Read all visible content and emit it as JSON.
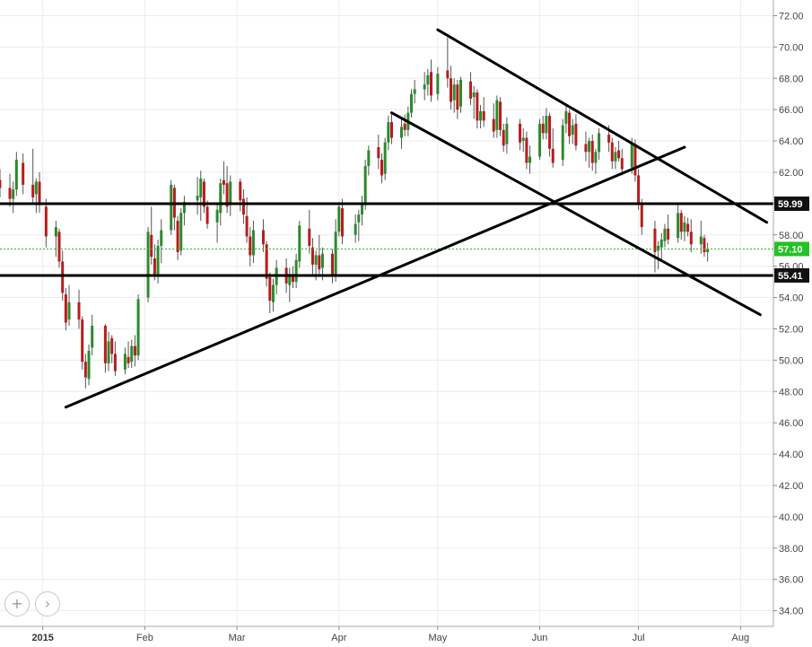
{
  "chart_data": {
    "type": "candlestick",
    "title": "",
    "xlabel": "",
    "ylabel": "",
    "ylim": [
      33,
      73
    ],
    "y_axis_position": "right",
    "y_ticks": [
      "34.00",
      "36.00",
      "38.00",
      "40.00",
      "42.00",
      "44.00",
      "46.00",
      "48.00",
      "50.00",
      "52.00",
      "54.00",
      "56.00",
      "58.00",
      "60.00",
      "62.00",
      "64.00",
      "66.00",
      "68.00",
      "70.00",
      "72.00"
    ],
    "x_ticks": [
      {
        "date": "2015-01-01",
        "label": "2015",
        "bold": true
      },
      {
        "date": "2015-02-01",
        "label": "Feb"
      },
      {
        "date": "2015-03-01",
        "label": "Mar"
      },
      {
        "date": "2015-04-01",
        "label": "Apr"
      },
      {
        "date": "2015-05-01",
        "label": "May"
      },
      {
        "date": "2015-06-01",
        "label": "Jun"
      },
      {
        "date": "2015-07-01",
        "label": "Jul"
      },
      {
        "date": "2015-08-01",
        "label": "Aug"
      }
    ],
    "x_range": [
      "2014-12-19",
      "2015-08-11"
    ],
    "grid": true,
    "colors": {
      "up": "#2d8a2d",
      "down": "#b71c1c",
      "wick": "#555555",
      "grid": "#ececec",
      "line": "#000000",
      "price_line": "#22bb22",
      "badge_green": "#22c322",
      "badge_dark": "#111111"
    },
    "key_levels": [
      {
        "value": 59.99,
        "label": "59.99"
      },
      {
        "value": 55.41,
        "label": "55.41"
      }
    ],
    "last_price": {
      "value": 57.1,
      "label": "57.10"
    },
    "trendlines": [
      {
        "from": [
          "2015-01-08",
          47.0
        ],
        "to": [
          "2015-07-15",
          63.6
        ]
      },
      {
        "from": [
          "2015-05-01",
          71.1
        ],
        "to": [
          "2015-08-09",
          58.8
        ]
      },
      {
        "from": [
          "2015-04-17",
          65.8
        ],
        "to": [
          "2015-08-07",
          52.9
        ]
      }
    ],
    "candles": [
      [
        "2014-12-19",
        61.5,
        62.2,
        60.4,
        61.0
      ],
      [
        "2014-12-22",
        61.0,
        61.9,
        59.8,
        60.3
      ],
      [
        "2014-12-23",
        60.3,
        61.4,
        59.4,
        60.9
      ],
      [
        "2014-12-24",
        60.9,
        63.3,
        60.5,
        62.8
      ],
      [
        "2014-12-26",
        62.6,
        63.2,
        60.6,
        61.2
      ],
      [
        "2014-12-29",
        61.2,
        63.5,
        60.0,
        60.4
      ],
      [
        "2014-12-30",
        60.6,
        61.6,
        59.4,
        61.4
      ],
      [
        "2014-12-31",
        61.4,
        62.0,
        59.4,
        59.9
      ],
      [
        "2015-01-02",
        59.8,
        60.3,
        57.2,
        57.9
      ],
      [
        "2015-01-05",
        57.9,
        58.9,
        56.6,
        58.5
      ],
      [
        "2015-01-06",
        58.2,
        58.4,
        55.9,
        56.3
      ],
      [
        "2015-01-07",
        56.3,
        57.0,
        53.8,
        54.3
      ],
      [
        "2015-01-08",
        54.2,
        54.6,
        51.9,
        52.4
      ],
      [
        "2015-01-09",
        52.6,
        54.8,
        52.2,
        53.7
      ],
      [
        "2015-01-12",
        53.7,
        54.5,
        52.0,
        52.6
      ],
      [
        "2015-01-13",
        52.6,
        52.8,
        49.4,
        49.9
      ],
      [
        "2015-01-14",
        49.9,
        50.4,
        48.2,
        48.9
      ],
      [
        "2015-01-15",
        48.8,
        51.0,
        48.4,
        50.6
      ],
      [
        "2015-01-16",
        50.8,
        52.9,
        50.3,
        52.2
      ],
      [
        "2015-01-20",
        52.2,
        52.3,
        49.2,
        49.8
      ],
      [
        "2015-01-21",
        49.8,
        51.8,
        49.3,
        51.2
      ],
      [
        "2015-01-22",
        51.4,
        51.6,
        49.8,
        50.4
      ],
      [
        "2015-01-23",
        50.4,
        51.2,
        49.0,
        49.3
      ],
      [
        "2015-01-26",
        49.4,
        50.8,
        49.1,
        50.4
      ],
      [
        "2015-01-27",
        50.2,
        51.2,
        49.5,
        49.8
      ],
      [
        "2015-01-28",
        49.9,
        51.3,
        49.5,
        50.9
      ],
      [
        "2015-01-29",
        50.9,
        51.6,
        49.6,
        50.3
      ],
      [
        "2015-01-30",
        50.3,
        54.2,
        50.0,
        53.9
      ],
      [
        "2015-02-02",
        54.0,
        58.5,
        53.7,
        58.2
      ],
      [
        "2015-02-03",
        58.0,
        59.8,
        56.1,
        56.6
      ],
      [
        "2015-02-04",
        56.5,
        57.4,
        55.1,
        55.5
      ],
      [
        "2015-02-05",
        55.5,
        57.7,
        54.9,
        57.3
      ],
      [
        "2015-02-06",
        57.3,
        59.0,
        56.2,
        58.3
      ],
      [
        "2015-02-09",
        58.3,
        61.5,
        58.0,
        61.2
      ],
      [
        "2015-02-10",
        61.0,
        61.2,
        58.3,
        59.1
      ],
      [
        "2015-02-11",
        58.9,
        59.2,
        56.4,
        56.9
      ],
      [
        "2015-02-12",
        57.0,
        59.7,
        56.7,
        59.4
      ],
      [
        "2015-02-13",
        59.4,
        60.5,
        58.6,
        60.1
      ],
      [
        "2015-02-17",
        60.2,
        61.7,
        59.3,
        60.5
      ],
      [
        "2015-02-18",
        60.4,
        62.1,
        58.9,
        61.6
      ],
      [
        "2015-02-19",
        61.4,
        61.6,
        59.4,
        59.8
      ],
      [
        "2015-02-20",
        59.8,
        60.2,
        58.4,
        58.7
      ],
      [
        "2015-02-23",
        58.8,
        59.9,
        57.5,
        59.6
      ],
      [
        "2015-02-24",
        59.4,
        61.6,
        58.6,
        61.3
      ],
      [
        "2015-02-25",
        61.5,
        62.7,
        60.6,
        61.2
      ],
      [
        "2015-02-26",
        61.3,
        62.4,
        59.4,
        59.8
      ],
      [
        "2015-02-27",
        59.9,
        61.8,
        59.2,
        61.4
      ],
      [
        "2015-03-02",
        61.4,
        61.6,
        59.5,
        60.2
      ],
      [
        "2015-03-03",
        60.3,
        60.9,
        58.7,
        59.3
      ],
      [
        "2015-03-04",
        59.2,
        60.4,
        57.5,
        57.9
      ],
      [
        "2015-03-05",
        57.9,
        58.5,
        56.0,
        56.7
      ],
      [
        "2015-03-06",
        56.7,
        58.9,
        56.2,
        58.3
      ],
      [
        "2015-03-09",
        58.3,
        59.0,
        56.9,
        57.4
      ],
      [
        "2015-03-10",
        57.4,
        57.6,
        54.7,
        55.2
      ],
      [
        "2015-03-11",
        55.3,
        55.6,
        53.0,
        53.8
      ],
      [
        "2015-03-12",
        53.7,
        55.2,
        53.1,
        54.8
      ],
      [
        "2015-03-13",
        54.8,
        56.4,
        54.2,
        55.9
      ],
      [
        "2015-03-16",
        55.9,
        56.5,
        54.3,
        54.9
      ],
      [
        "2015-03-17",
        54.8,
        55.9,
        53.7,
        55.5
      ],
      [
        "2015-03-18",
        55.5,
        56.0,
        54.6,
        55.0
      ],
      [
        "2015-03-19",
        55.0,
        56.8,
        54.6,
        56.4
      ],
      [
        "2015-03-20",
        56.3,
        58.9,
        55.9,
        58.6
      ],
      [
        "2015-03-23",
        58.4,
        59.6,
        56.8,
        57.3
      ],
      [
        "2015-03-24",
        57.2,
        57.8,
        55.5,
        56.1
      ],
      [
        "2015-03-25",
        56.1,
        57.0,
        55.1,
        56.7
      ],
      [
        "2015-03-26",
        56.7,
        58.0,
        55.4,
        55.8
      ],
      [
        "2015-03-27",
        55.9,
        57.2,
        55.1,
        56.8
      ],
      [
        "2015-03-30",
        56.8,
        57.1,
        54.9,
        55.4
      ],
      [
        "2015-03-31",
        55.4,
        59.0,
        55.0,
        58.2
      ],
      [
        "2015-04-01",
        58.2,
        60.1,
        57.9,
        59.8
      ],
      [
        "2015-04-02",
        59.7,
        60.3,
        57.4,
        57.9
      ],
      [
        "2015-04-06",
        58.0,
        59.3,
        57.5,
        58.7
      ],
      [
        "2015-04-07",
        58.8,
        59.6,
        57.6,
        59.3
      ],
      [
        "2015-04-08",
        59.3,
        60.5,
        58.6,
        59.9
      ],
      [
        "2015-04-09",
        59.9,
        62.8,
        59.6,
        62.4
      ],
      [
        "2015-04-10",
        62.4,
        63.7,
        61.8,
        63.4
      ],
      [
        "2015-04-13",
        63.6,
        64.4,
        62.2,
        62.9
      ],
      [
        "2015-04-14",
        62.8,
        63.2,
        61.3,
        61.8
      ],
      [
        "2015-04-15",
        61.9,
        64.2,
        61.5,
        63.9
      ],
      [
        "2015-04-16",
        63.9,
        65.6,
        63.4,
        65.2
      ],
      [
        "2015-04-17",
        65.2,
        65.7,
        63.8,
        64.2
      ],
      [
        "2015-04-20",
        64.2,
        65.4,
        63.5,
        64.9
      ],
      [
        "2015-04-21",
        65.1,
        65.7,
        64.3,
        64.7
      ],
      [
        "2015-04-22",
        64.7,
        66.2,
        64.3,
        65.8
      ],
      [
        "2015-04-23",
        65.8,
        67.3,
        65.5,
        67.0
      ],
      [
        "2015-04-24",
        67.0,
        67.9,
        66.4,
        67.3
      ],
      [
        "2015-04-27",
        67.3,
        68.4,
        66.6,
        67.6
      ],
      [
        "2015-04-28",
        67.6,
        68.6,
        66.9,
        68.2
      ],
      [
        "2015-04-29",
        68.4,
        69.2,
        66.5,
        66.9
      ],
      [
        "2015-05-01",
        67.0,
        68.7,
        66.6,
        68.3
      ],
      [
        "2015-05-04",
        68.5,
        70.6,
        67.4,
        68.0
      ],
      [
        "2015-05-05",
        68.0,
        68.8,
        66.0,
        66.5
      ],
      [
        "2015-05-06",
        66.6,
        68.0,
        65.8,
        67.6
      ],
      [
        "2015-05-07",
        67.6,
        67.9,
        65.4,
        66.0
      ],
      [
        "2015-05-08",
        66.2,
        68.1,
        65.8,
        67.9
      ],
      [
        "2015-05-11",
        67.8,
        68.4,
        66.3,
        66.7
      ],
      [
        "2015-05-12",
        66.8,
        67.5,
        65.4,
        67.1
      ],
      [
        "2015-05-13",
        67.1,
        67.3,
        64.8,
        65.3
      ],
      [
        "2015-05-14",
        65.3,
        66.3,
        64.8,
        65.9
      ],
      [
        "2015-05-15",
        65.9,
        66.8,
        64.9,
        65.3
      ],
      [
        "2015-05-18",
        65.4,
        66.4,
        64.2,
        64.6
      ],
      [
        "2015-05-19",
        64.7,
        66.9,
        64.2,
        66.6
      ],
      [
        "2015-05-20",
        66.5,
        66.8,
        64.3,
        64.7
      ],
      [
        "2015-05-21",
        64.7,
        65.1,
        63.3,
        63.7
      ],
      [
        "2015-05-22",
        63.8,
        65.5,
        63.2,
        65.1
      ],
      [
        "2015-05-26",
        65.1,
        65.4,
        63.4,
        63.9
      ],
      [
        "2015-05-27",
        64.0,
        64.8,
        63.3,
        64.2
      ],
      [
        "2015-05-28",
        64.2,
        64.6,
        62.2,
        62.6
      ],
      [
        "2015-05-29",
        62.6,
        63.7,
        61.9,
        63.0
      ],
      [
        "2015-06-01",
        63.0,
        65.4,
        62.8,
        65.1
      ],
      [
        "2015-06-02",
        65.1,
        65.6,
        64.1,
        64.5
      ],
      [
        "2015-06-03",
        64.5,
        66.1,
        64.1,
        65.6
      ],
      [
        "2015-06-04",
        65.6,
        65.8,
        63.0,
        63.5
      ],
      [
        "2015-06-05",
        63.5,
        64.8,
        62.3,
        62.6
      ],
      [
        "2015-06-08",
        62.8,
        65.4,
        62.4,
        65.0
      ],
      [
        "2015-06-09",
        65.1,
        66.2,
        64.5,
        65.9
      ],
      [
        "2015-06-10",
        65.8,
        66.0,
        63.8,
        64.3
      ],
      [
        "2015-06-11",
        64.4,
        65.4,
        63.8,
        65.0
      ],
      [
        "2015-06-12",
        65.1,
        65.7,
        63.4,
        63.7
      ],
      [
        "2015-06-15",
        63.8,
        64.6,
        62.7,
        63.3
      ],
      [
        "2015-06-16",
        63.3,
        64.2,
        62.3,
        64.0
      ],
      [
        "2015-06-17",
        64.0,
        64.4,
        62.1,
        62.6
      ],
      [
        "2015-06-18",
        62.6,
        63.5,
        61.9,
        63.3
      ],
      [
        "2015-06-19",
        63.3,
        64.8,
        62.8,
        64.5
      ],
      [
        "2015-06-22",
        64.4,
        65.0,
        63.3,
        63.9
      ],
      [
        "2015-06-23",
        63.9,
        64.2,
        62.2,
        62.7
      ],
      [
        "2015-06-24",
        62.7,
        63.6,
        62.2,
        63.3
      ],
      [
        "2015-06-25",
        63.4,
        64.0,
        62.7,
        62.9
      ],
      [
        "2015-06-26",
        62.9,
        63.5,
        61.8,
        62.2
      ],
      [
        "2015-06-29",
        62.3,
        64.2,
        61.9,
        63.8
      ],
      [
        "2015-06-30",
        63.8,
        64.1,
        61.4,
        61.8
      ],
      [
        "2015-07-01",
        61.8,
        62.2,
        59.6,
        59.9
      ],
      [
        "2015-07-02",
        59.9,
        60.3,
        58.0,
        58.5
      ],
      [
        "2015-07-06",
        58.4,
        58.9,
        55.6,
        56.9
      ],
      [
        "2015-07-07",
        57.0,
        57.6,
        55.8,
        57.3
      ],
      [
        "2015-07-08",
        57.2,
        58.1,
        56.4,
        57.7
      ],
      [
        "2015-07-09",
        57.6,
        58.7,
        57.2,
        58.4
      ],
      [
        "2015-07-10",
        58.4,
        59.3,
        57.4,
        57.7
      ],
      [
        "2015-07-13",
        57.8,
        59.9,
        57.5,
        59.4
      ],
      [
        "2015-07-14",
        59.4,
        59.6,
        57.7,
        58.2
      ],
      [
        "2015-07-15",
        58.2,
        59.2,
        57.6,
        58.8
      ],
      [
        "2015-07-16",
        58.7,
        59.1,
        57.9,
        58.2
      ],
      [
        "2015-07-17",
        58.2,
        59.0,
        56.9,
        57.4
      ],
      [
        "2015-07-20",
        57.4,
        58.9,
        56.8,
        57.9
      ],
      [
        "2015-07-21",
        57.8,
        58.0,
        56.6,
        56.9
      ],
      [
        "2015-07-22",
        56.9,
        57.5,
        56.3,
        57.1
      ]
    ]
  },
  "controls": {
    "zoom_in": "+",
    "scroll_right": "›"
  }
}
